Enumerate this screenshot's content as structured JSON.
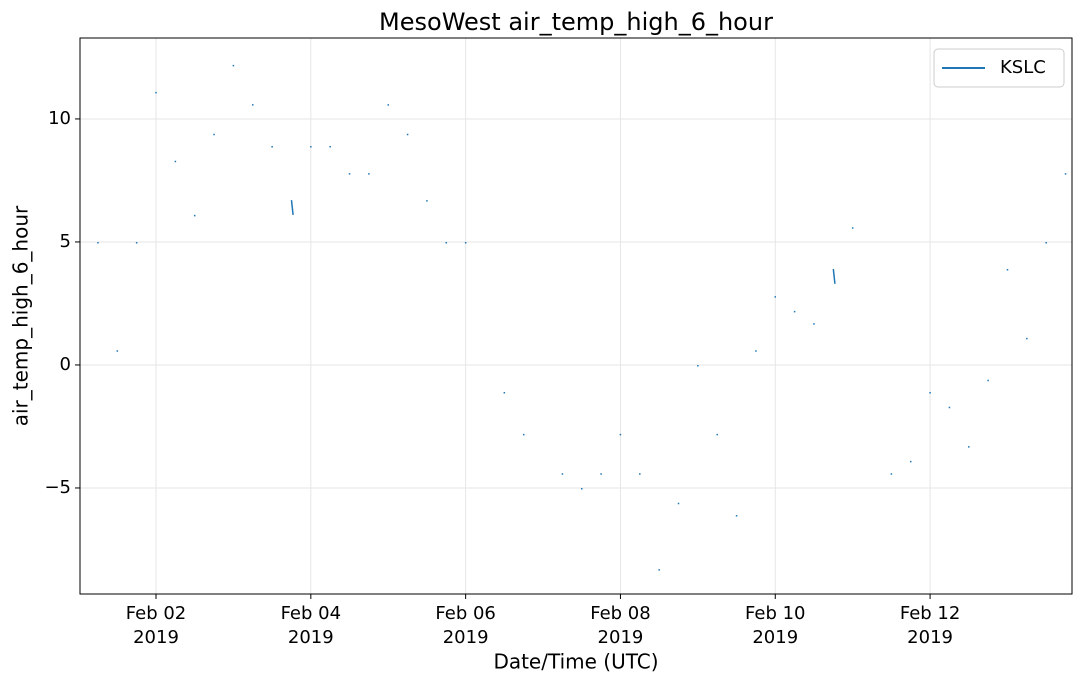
{
  "chart_data": {
    "type": "line",
    "title": "MesoWest air_temp_high_6_hour",
    "x_label": "Date/Time (UTC)",
    "y_label": "air_temp_high_6_hour",
    "x": [
      "2019-02-01T06:00",
      "2019-02-01T09:00",
      "2019-02-01T12:00",
      "2019-02-01T15:00",
      "2019-02-01T18:00",
      "2019-02-01T21:00",
      "2019-02-02T00:00",
      "2019-02-02T03:00",
      "2019-02-02T06:00",
      "2019-02-02T09:00",
      "2019-02-02T12:00",
      "2019-02-02T15:00",
      "2019-02-02T18:00",
      "2019-02-02T21:00",
      "2019-02-03T00:00",
      "2019-02-03T03:00",
      "2019-02-03T06:00",
      "2019-02-03T09:00",
      "2019-02-03T12:00",
      "2019-02-03T15:00",
      "2019-02-03T18:00",
      "2019-02-03T18:30",
      "2019-02-03T21:00",
      "2019-02-04T00:00",
      "2019-02-04T03:00",
      "2019-02-04T06:00",
      "2019-02-04T09:00",
      "2019-02-04T12:00",
      "2019-02-04T15:00",
      "2019-02-04T18:00",
      "2019-02-04T21:00",
      "2019-02-05T00:00",
      "2019-02-05T03:00",
      "2019-02-05T06:00",
      "2019-02-05T09:00",
      "2019-02-05T12:00",
      "2019-02-05T15:00",
      "2019-02-05T18:00",
      "2019-02-05T21:00",
      "2019-02-06T00:00",
      "2019-02-06T06:00",
      "2019-02-06T12:00",
      "2019-02-06T15:00",
      "2019-02-06T18:00",
      "2019-02-07T00:00",
      "2019-02-07T06:00",
      "2019-02-07T09:00",
      "2019-02-07T12:00",
      "2019-02-07T15:00",
      "2019-02-07T18:00",
      "2019-02-07T21:00",
      "2019-02-08T00:00",
      "2019-02-08T03:00",
      "2019-02-08T06:00",
      "2019-02-08T09:00",
      "2019-02-08T12:00",
      "2019-02-08T15:00",
      "2019-02-08T18:00",
      "2019-02-08T21:00",
      "2019-02-09T00:00",
      "2019-02-09T03:00",
      "2019-02-09T06:00",
      "2019-02-09T09:00",
      "2019-02-09T12:00",
      "2019-02-09T15:00",
      "2019-02-09T18:00",
      "2019-02-09T21:00",
      "2019-02-10T00:00",
      "2019-02-10T03:00",
      "2019-02-10T06:00",
      "2019-02-10T09:00",
      "2019-02-10T12:00",
      "2019-02-10T15:00",
      "2019-02-10T18:00",
      "2019-02-10T18:30",
      "2019-02-10T21:00",
      "2019-02-11T00:00",
      "2019-02-11T06:00",
      "2019-02-11T12:00",
      "2019-02-11T15:00",
      "2019-02-11T18:00",
      "2019-02-11T21:00",
      "2019-02-12T00:00",
      "2019-02-12T03:00",
      "2019-02-12T06:00",
      "2019-02-12T09:00",
      "2019-02-12T12:00",
      "2019-02-12T15:00",
      "2019-02-12T18:00",
      "2019-02-12T21:00",
      "2019-02-13T00:00",
      "2019-02-13T03:00",
      "2019-02-13T06:00",
      "2019-02-13T09:00",
      "2019-02-13T12:00",
      "2019-02-13T15:00",
      "2019-02-13T18:00"
    ],
    "series": [
      {
        "name": "KSLC",
        "color": "#1f77b4",
        "values": [
          5,
          null,
          0.6,
          null,
          5,
          null,
          11.1,
          null,
          8.3,
          null,
          6.1,
          null,
          9.4,
          null,
          12.2,
          null,
          10.6,
          null,
          8.9,
          null,
          6.7,
          6.1,
          null,
          8.9,
          null,
          8.9,
          null,
          7.8,
          null,
          7.8,
          null,
          10.6,
          null,
          9.4,
          null,
          6.7,
          null,
          5,
          null,
          5,
          null,
          -1.1,
          null,
          -2.8,
          null,
          -4.4,
          null,
          -5,
          null,
          -4.4,
          null,
          -2.8,
          null,
          -4.4,
          null,
          -8.3,
          null,
          -5.6,
          null,
          0,
          null,
          -2.8,
          null,
          -6.1,
          null,
          0.6,
          null,
          2.8,
          null,
          2.2,
          null,
          1.7,
          null,
          3.9,
          3.3,
          null,
          5.6,
          null,
          -4.4,
          null,
          -3.9,
          null,
          -1.1,
          null,
          -1.7,
          null,
          -3.3,
          null,
          -0.6,
          null,
          3.9,
          null,
          1.1,
          null,
          5,
          null,
          7.8
        ]
      }
    ],
    "xlim": [
      "2019-02-01T00:26",
      "2019-02-13T20:00"
    ],
    "xticks": [
      {
        "value": "2019-02-02T00:00",
        "label": [
          "Feb 02",
          "2019"
        ]
      },
      {
        "value": "2019-02-04T00:00",
        "label": [
          "Feb 04",
          "2019"
        ]
      },
      {
        "value": "2019-02-06T00:00",
        "label": [
          "Feb 06",
          "2019"
        ]
      },
      {
        "value": "2019-02-08T00:00",
        "label": [
          "Feb 08",
          "2019"
        ]
      },
      {
        "value": "2019-02-10T00:00",
        "label": [
          "Feb 10",
          "2019"
        ]
      },
      {
        "value": "2019-02-12T00:00",
        "label": [
          "Feb 12",
          "2019"
        ]
      }
    ],
    "ylim": [
      -9.31,
      13.29
    ],
    "yticks": [
      {
        "value": -5,
        "label": "−5"
      },
      0,
      5,
      10
    ],
    "grid": true,
    "legend": "upper right"
  }
}
